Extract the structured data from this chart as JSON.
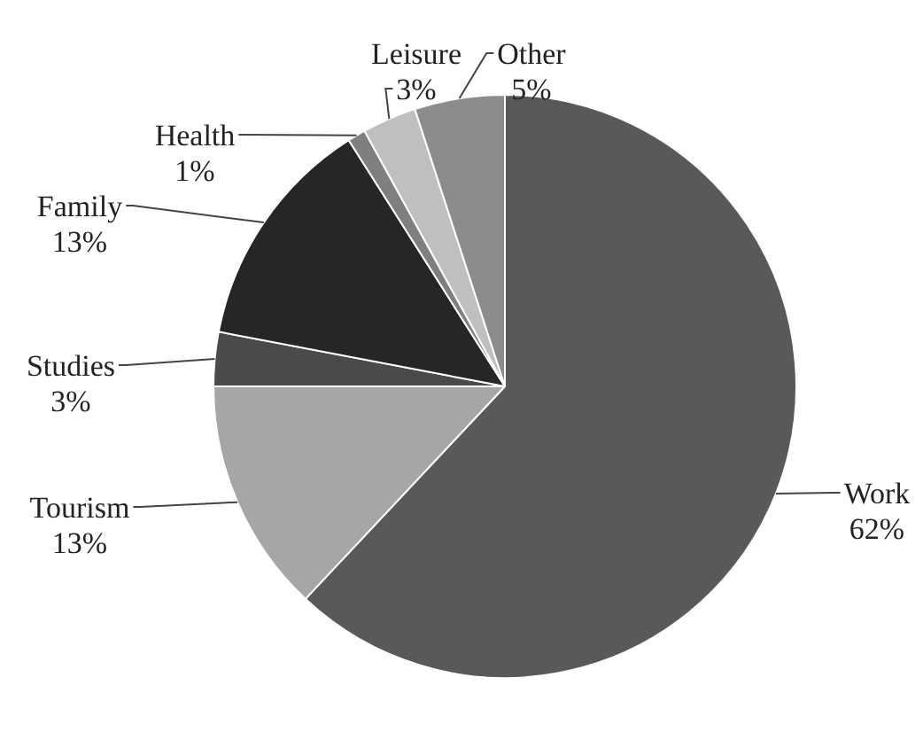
{
  "chart_data": {
    "type": "pie",
    "categories": [
      "Work",
      "Tourism",
      "Studies",
      "Family",
      "Health",
      "Leisure",
      "Other"
    ],
    "values": [
      62,
      13,
      3,
      13,
      1,
      3,
      5
    ],
    "colors": [
      "#595959",
      "#a6a6a6",
      "#4a4a4a",
      "#262626",
      "#7f7f7f",
      "#bfbfbf",
      "#8c8c8c"
    ],
    "value_labels": [
      "62%",
      "13%",
      "3%",
      "13%",
      "1%",
      "3%",
      "5%"
    ],
    "legend": false
  }
}
